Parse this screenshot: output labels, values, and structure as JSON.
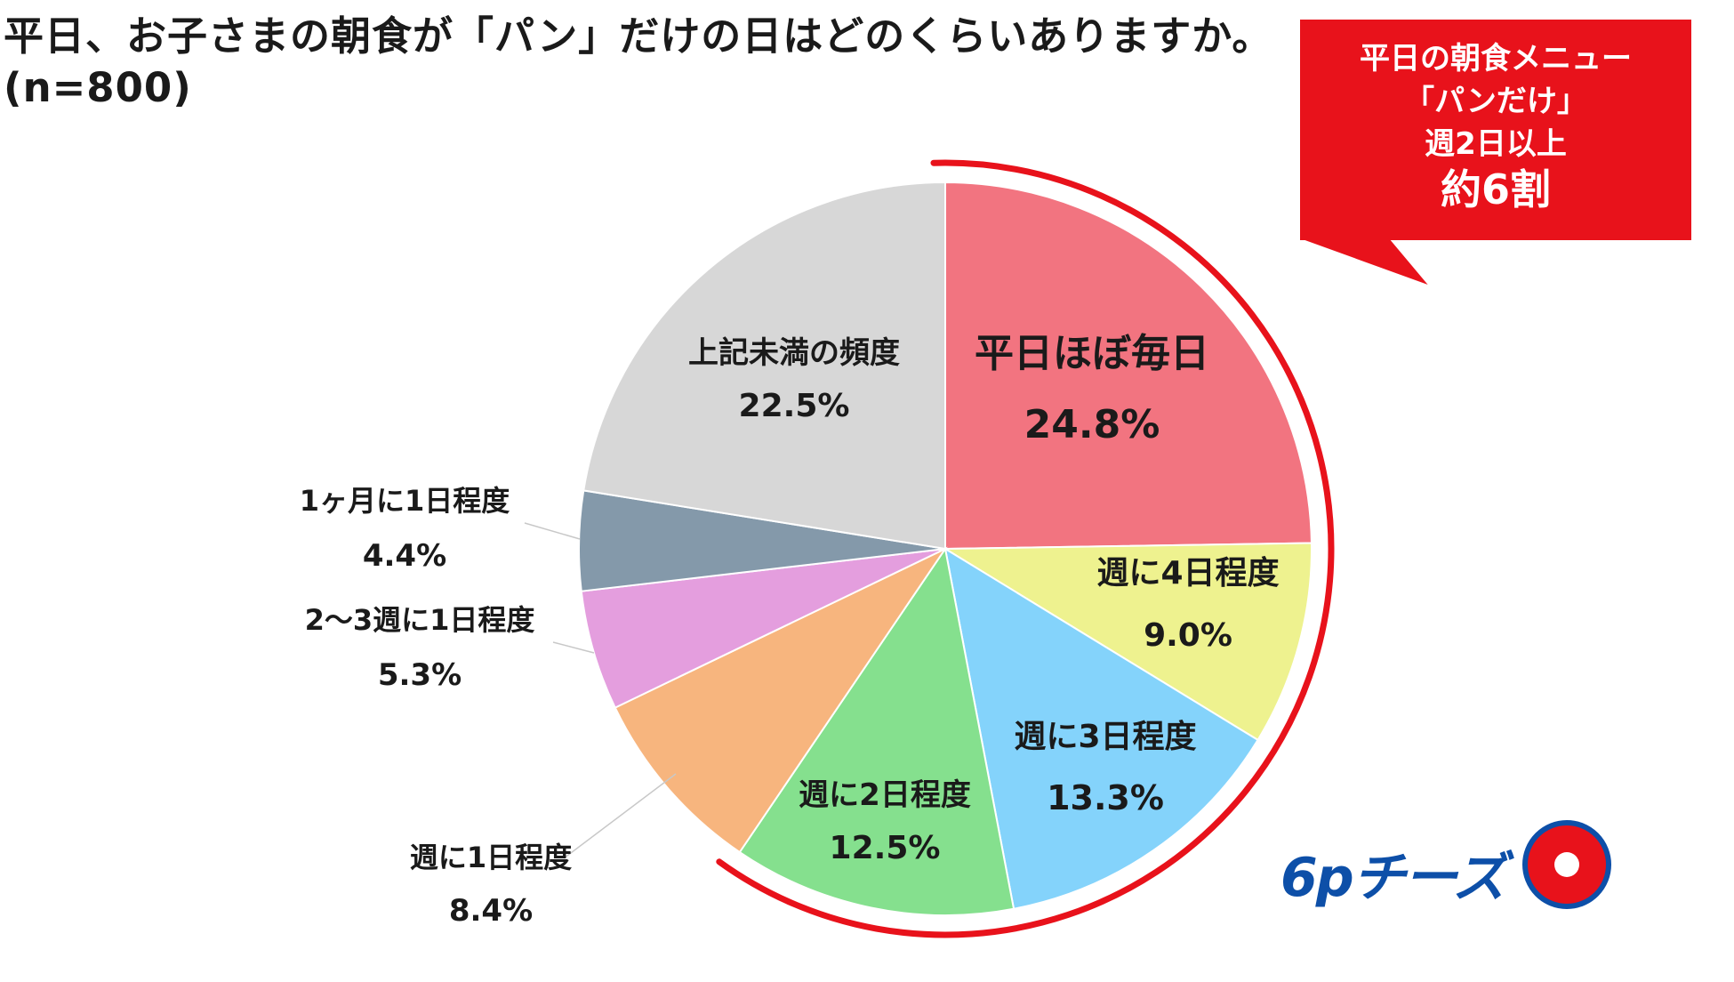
{
  "title": {
    "question": "平日、お子さまの朝食が「パン」だけの日はどのくらいありますか。",
    "sample": "(n=800)"
  },
  "callout": {
    "line1": "平日の朝食メニュー",
    "line2": "「パンだけ」",
    "line3": "週2日以上",
    "line4": "約6割",
    "color": "#e8121b"
  },
  "logo": {
    "text": "6pチーズ"
  },
  "chart_data": {
    "type": "pie",
    "start": "12 o'clock, clockwise",
    "highlight_arc": "red arc around 平日ほぼ毎日 through 週に2日程度",
    "slices": [
      {
        "label": "平日ほぼ毎日",
        "value": 24.8,
        "value_label": "24.8%",
        "color": "#f27480",
        "label_inside": true
      },
      {
        "label": "週に4日程度",
        "value": 9.0,
        "value_label": "9.0%",
        "color": "#eef28f",
        "label_inside": true
      },
      {
        "label": "週に3日程度",
        "value": 13.3,
        "value_label": "13.3%",
        "color": "#84d3fb",
        "label_inside": true
      },
      {
        "label": "週に2日程度",
        "value": 12.5,
        "value_label": "12.5%",
        "color": "#85e08e",
        "label_inside": true
      },
      {
        "label": "週に1日程度",
        "value": 8.4,
        "value_label": "8.4%",
        "color": "#f7b57e",
        "label_inside": false
      },
      {
        "label": "2～3週に1日程度",
        "value": 5.3,
        "value_label": "5.3%",
        "color": "#e49ede",
        "label_inside": false
      },
      {
        "label": "1ヶ月に1日程度",
        "value": 4.4,
        "value_label": "4.4%",
        "color": "#8499aa",
        "label_inside": false
      },
      {
        "label": "上記未満の頻度",
        "value": 22.5,
        "value_label": "22.5%",
        "color": "#d7d7d7",
        "label_inside": true
      }
    ]
  }
}
